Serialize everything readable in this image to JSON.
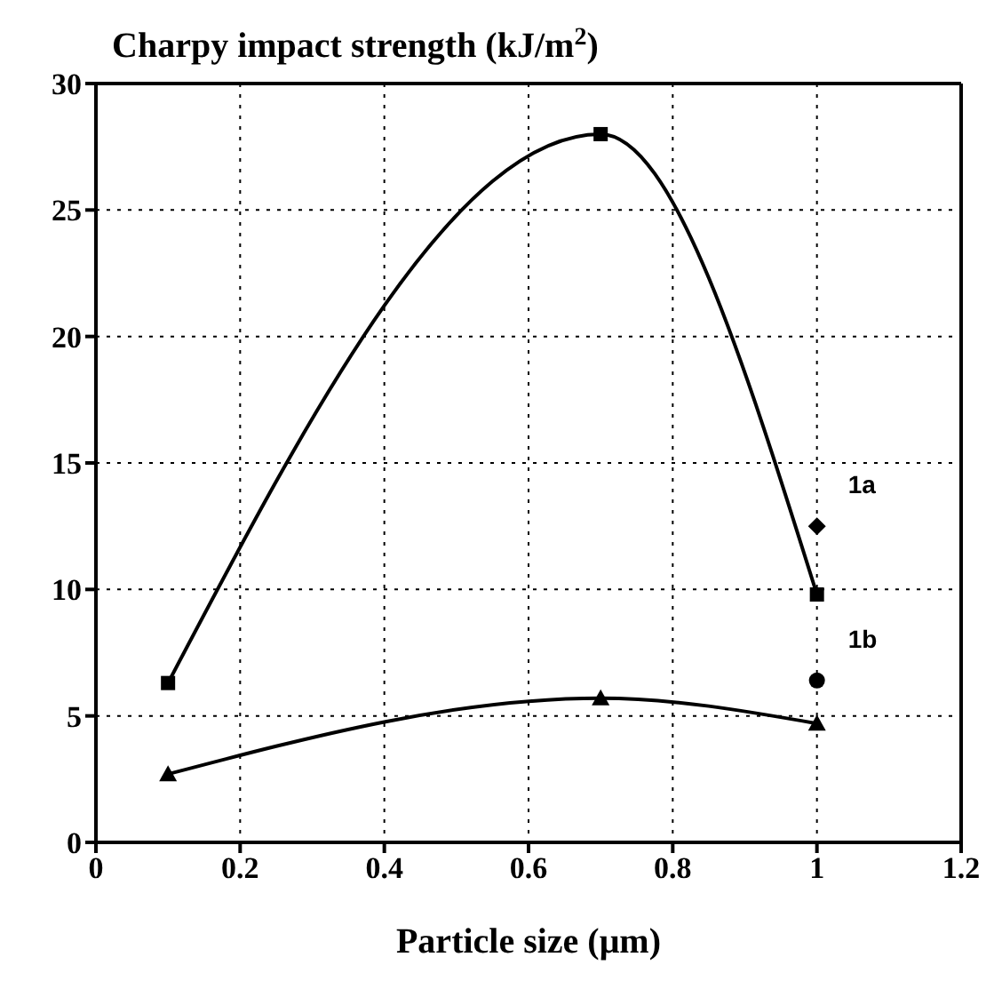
{
  "chart_data": {
    "type": "line",
    "title": "Charpy impact strength (kJ/m$^{2}$)",
    "xlabel": "Particle size (μm)",
    "xlim": [
      0,
      1.2
    ],
    "xticks": [
      0,
      0.2,
      0.4,
      0.6,
      0.8,
      1,
      1.2
    ],
    "ylim": [
      0,
      30
    ],
    "yticks": [
      0,
      5,
      10,
      15,
      20,
      25,
      30
    ],
    "grid": true,
    "series": [
      {
        "color": "#000000",
        "marker": "square",
        "x": [
          0.1,
          0.7,
          1.0
        ],
        "values": [
          6.3,
          28.0,
          9.8
        ]
      },
      {
        "color": "#000000",
        "marker": "triangle",
        "x": [
          0.1,
          0.7,
          1.0
        ],
        "values": [
          2.7,
          5.7,
          4.7
        ]
      },
      {
        "type": "scatter",
        "name": "1a",
        "color": "#000000",
        "marker": "diamond",
        "x": [
          1.0
        ],
        "values": [
          12.5
        ]
      },
      {
        "type": "scatter",
        "name": "1b",
        "color": "#000000",
        "marker": "circle",
        "x": [
          1.0
        ],
        "values": [
          6.4
        ]
      }
    ]
  }
}
